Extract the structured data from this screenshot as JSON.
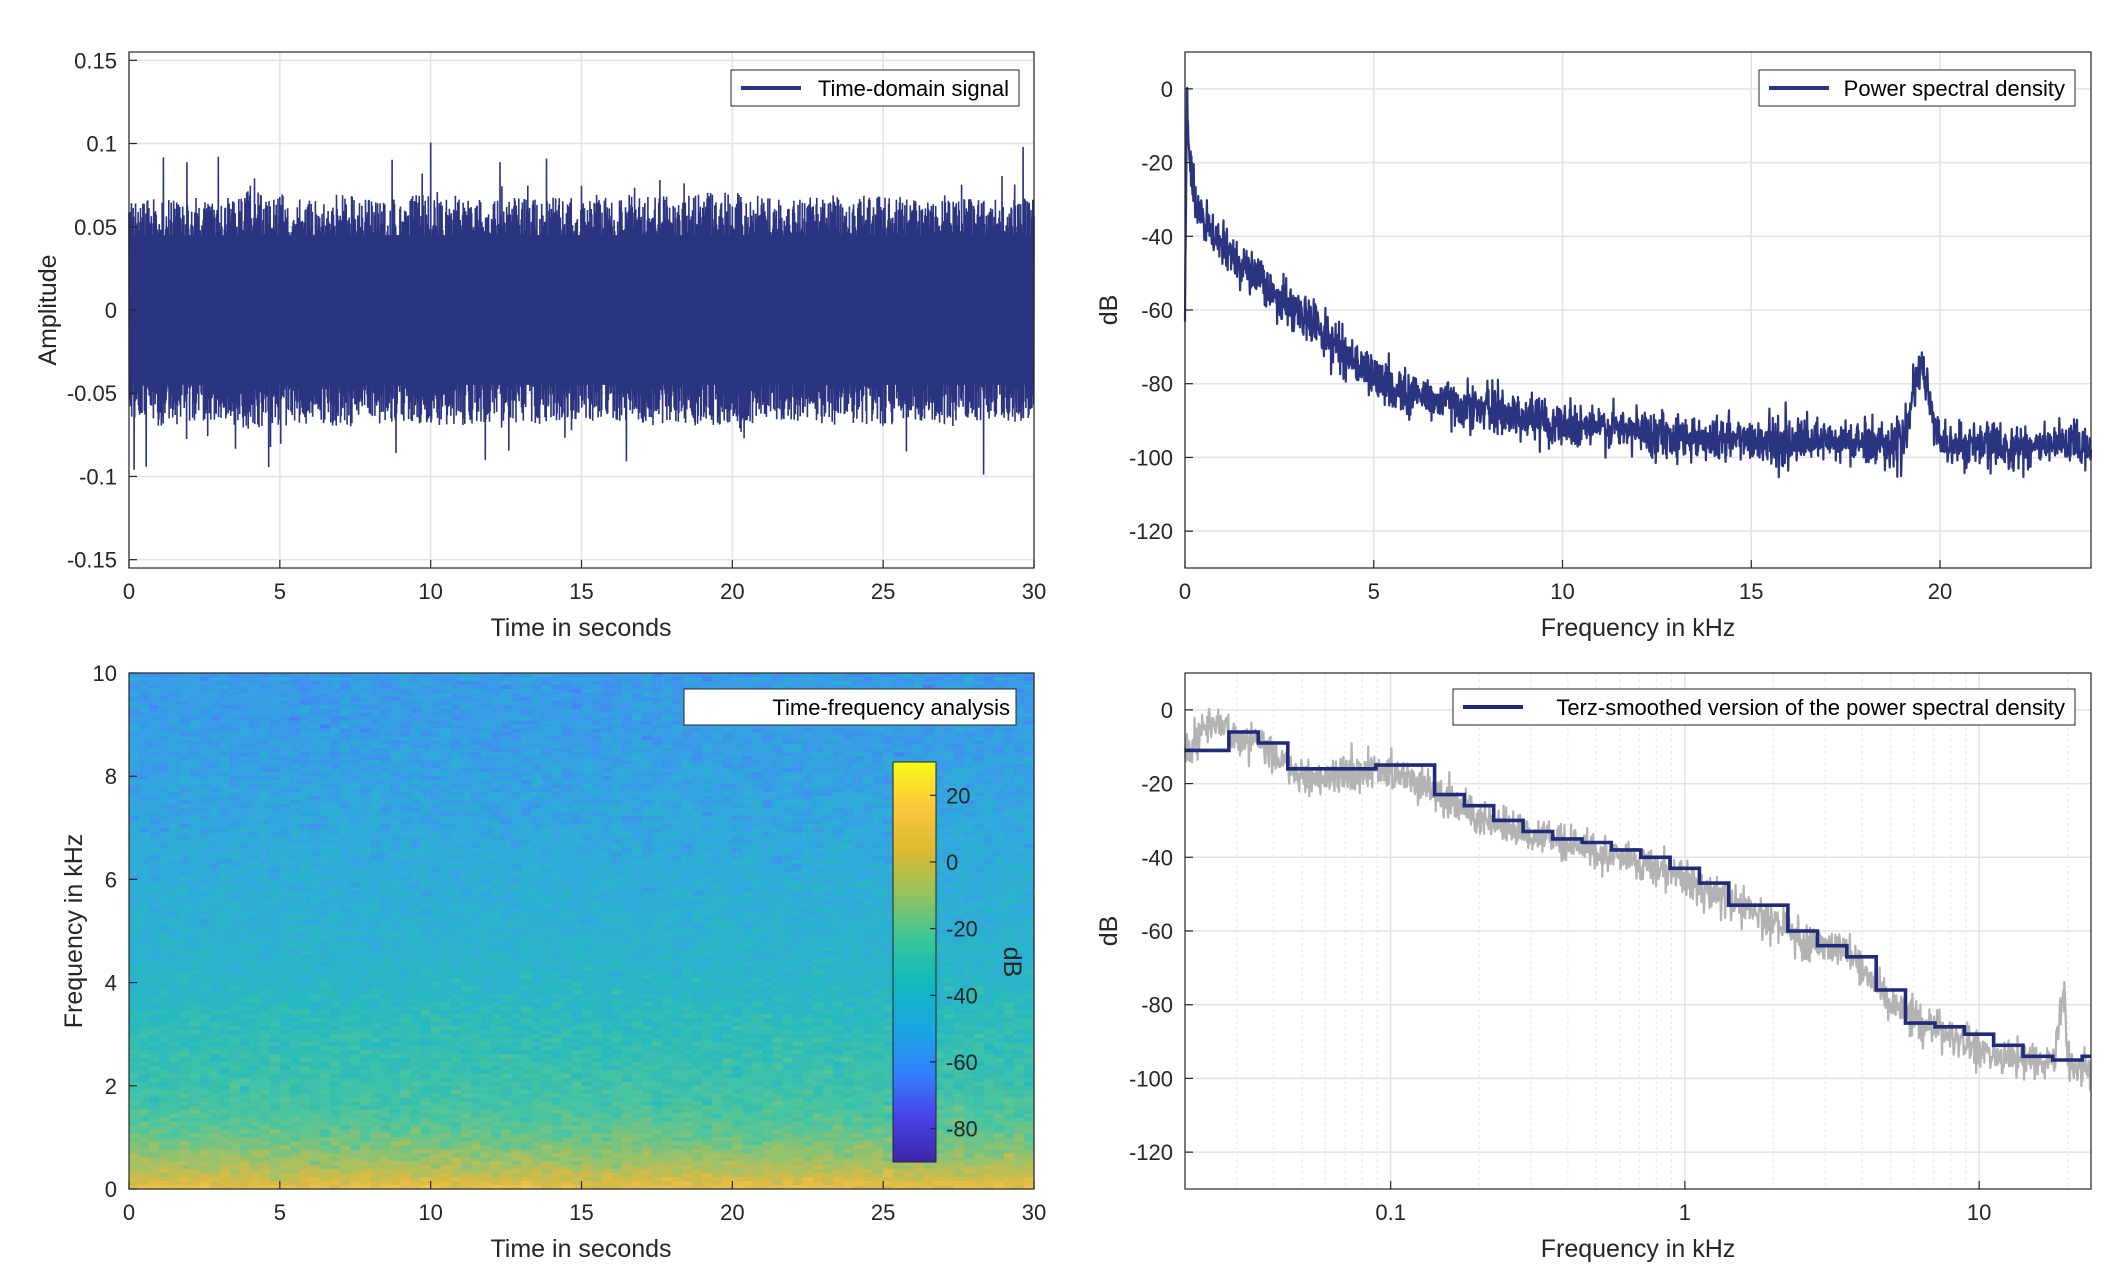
{
  "colors": {
    "signal": "#2a3480",
    "smoothed": "#1f2a78",
    "raw_psd_gray": "#b3b3b3",
    "grid": "#e3e3e3",
    "axis": "#262626",
    "colormap": [
      "#3e26a8",
      "#4742e8",
      "#3082fd",
      "#1aa6e2",
      "#0fb9c0",
      "#37c69a",
      "#92c35e",
      "#dbba31",
      "#fcc73b",
      "#f9fb15"
    ]
  },
  "chart_data": [
    {
      "id": "time-domain",
      "type": "line",
      "legend": "Time-domain signal",
      "legend_position": "top-right",
      "xlabel": "Time in seconds",
      "ylabel": "Amplitude",
      "xlim": [
        0,
        30
      ],
      "ylim": [
        -0.155,
        0.155
      ],
      "xticks": [
        0,
        5,
        10,
        15,
        20,
        25,
        30
      ],
      "xticklabels": [
        "0",
        "5",
        "10",
        "15",
        "20",
        "25",
        "30"
      ],
      "yticks": [
        -0.15,
        -0.1,
        -0.05,
        0,
        0.05,
        0.1,
        0.15
      ],
      "yticklabels": [
        "-0.15",
        "-0.1",
        "-0.05",
        "0",
        "0.05",
        "0.1",
        "0.15"
      ],
      "grid": true,
      "series": [
        {
          "envelope_upper": [
            0.065,
            0.07,
            0.068,
            0.066,
            0.072,
            0.07,
            0.068,
            0.07,
            0.066,
            0.068,
            0.072,
            0.07,
            0.067,
            0.068,
            0.07,
            0.066,
            0.068,
            0.07,
            0.069,
            0.07,
            0.072,
            0.068,
            0.066,
            0.07,
            0.068,
            0.07,
            0.067,
            0.069,
            0.068,
            0.066,
            0.07
          ],
          "envelope_lower": [
            -0.065,
            -0.07,
            -0.068,
            -0.066,
            -0.072,
            -0.07,
            -0.068,
            -0.07,
            -0.066,
            -0.068,
            -0.072,
            -0.07,
            -0.067,
            -0.068,
            -0.07,
            -0.066,
            -0.068,
            -0.07,
            -0.069,
            -0.07,
            -0.072,
            -0.068,
            -0.066,
            -0.07,
            -0.068,
            -0.07,
            -0.067,
            -0.069,
            -0.068,
            -0.066,
            -0.07
          ],
          "peak_max": 0.13,
          "peak_min": -0.125
        }
      ]
    },
    {
      "id": "psd",
      "type": "line",
      "legend": "Power spectral density",
      "legend_position": "top-right",
      "xlabel": "Frequency in kHz",
      "ylabel": "dB",
      "xlim": [
        0,
        24
      ],
      "ylim": [
        -130,
        10
      ],
      "xticks": [
        0,
        5,
        10,
        15,
        20
      ],
      "xticklabels": [
        "0",
        "5",
        "10",
        "15",
        "20"
      ],
      "yticks": [
        0,
        -20,
        -40,
        -60,
        -80,
        -100,
        -120
      ],
      "yticklabels": [
        "0",
        "-20",
        "-40",
        "-60",
        "-80",
        "-100",
        "-120"
      ],
      "grid": true,
      "series": [
        {
          "x": [
            0,
            0.05,
            0.1,
            0.2,
            0.4,
            0.7,
            1,
            1.5,
            2,
            2.5,
            3,
            3.5,
            4,
            4.5,
            5,
            5.5,
            6,
            7,
            8,
            9,
            10,
            11,
            12,
            13,
            14,
            15,
            16,
            17,
            18,
            19,
            19.5,
            20,
            21,
            22,
            23,
            24
          ],
          "y": [
            -60,
            0,
            -15,
            -28,
            -35,
            -39,
            -43,
            -47,
            -52,
            -57,
            -61,
            -64,
            -70,
            -74,
            -78,
            -81,
            -83,
            -85,
            -87,
            -89,
            -91,
            -92,
            -93,
            -94,
            -95,
            -95,
            -96,
            -96,
            -96,
            -96,
            -75,
            -96,
            -97,
            -97,
            -97,
            -97
          ],
          "band_halfwidth_db": 3
        }
      ]
    },
    {
      "id": "spectrogram",
      "type": "heatmap",
      "legend": "Time-frequency analysis",
      "legend_position": "top-right",
      "xlabel": "Time in seconds",
      "ylabel": "Frequency in kHz",
      "xlim": [
        0,
        30
      ],
      "ylim": [
        0,
        10
      ],
      "xticks": [
        0,
        5,
        10,
        15,
        20,
        25,
        30
      ],
      "xticklabels": [
        "0",
        "5",
        "10",
        "15",
        "20",
        "25",
        "30"
      ],
      "yticks": [
        0,
        2,
        4,
        6,
        8,
        10
      ],
      "yticklabels": [
        "0",
        "2",
        "4",
        "6",
        "8",
        "10"
      ],
      "colorbar": {
        "label": "dB",
        "range": [
          -90,
          30
        ],
        "ticks": [
          20,
          0,
          -20,
          -40,
          -60,
          -80
        ],
        "ticklabels": [
          "20",
          "0",
          "-20",
          "-40",
          "-60",
          "-80"
        ]
      },
      "level_profile": {
        "freq_khz": [
          0,
          0.2,
          0.5,
          1,
          1.5,
          2,
          3,
          4,
          5,
          6,
          7,
          8,
          9,
          10
        ],
        "db": [
          10,
          2,
          -8,
          -18,
          -24,
          -28,
          -33,
          -40,
          -44,
          -47,
          -50,
          -53,
          -55,
          -56
        ]
      }
    },
    {
      "id": "terz-psd",
      "type": "line",
      "legend": "Terz-smoothed version of the power spectral density",
      "legend_position": "top-right",
      "xlabel": "Frequency in kHz",
      "ylabel": "dB",
      "xscale": "log",
      "xlim": [
        0.02,
        24
      ],
      "ylim": [
        -130,
        10
      ],
      "xticks": [
        0.1,
        1,
        10
      ],
      "xticklabels": [
        "0.1",
        "1",
        "10"
      ],
      "yticks": [
        0,
        -20,
        -40,
        -60,
        -80,
        -100,
        -120
      ],
      "yticklabels": [
        "0",
        "-20",
        "-40",
        "-60",
        "-80",
        "-100",
        "-120"
      ],
      "grid": true,
      "series": [
        {
          "role": "raw",
          "x": [
            0.02,
            0.025,
            0.03,
            0.035,
            0.04,
            0.05,
            0.06,
            0.07,
            0.08,
            0.1,
            0.12,
            0.14,
            0.16,
            0.2,
            0.25,
            0.3,
            0.4,
            0.5,
            0.6,
            0.8,
            1,
            1.2,
            1.5,
            2,
            2.5,
            3,
            3.5,
            4,
            4.5,
            5,
            6,
            7,
            8,
            10,
            12,
            15,
            18,
            19.5,
            20,
            21,
            24
          ],
          "y": [
            -12,
            -2,
            -8,
            -8,
            -12,
            -18,
            -18,
            -17,
            -16,
            -17,
            -20,
            -22,
            -25,
            -29,
            -32,
            -34,
            -36,
            -38,
            -40,
            -43,
            -46,
            -50,
            -53,
            -57,
            -62,
            -64,
            -66,
            -70,
            -74,
            -79,
            -83,
            -86,
            -89,
            -92,
            -94,
            -95,
            -96,
            -75,
            -96,
            -97,
            -97
          ]
        },
        {
          "role": "smoothed",
          "step_edges": [
            0.02,
            0.0282,
            0.0355,
            0.0447,
            0.0562,
            0.0708,
            0.0891,
            0.112,
            0.141,
            0.178,
            0.224,
            0.282,
            0.355,
            0.447,
            0.562,
            0.708,
            0.891,
            1.12,
            1.41,
            1.78,
            2.24,
            2.82,
            3.55,
            4.47,
            5.62,
            7.08,
            8.91,
            11.2,
            14.1,
            17.8,
            22.4,
            24
          ],
          "step_values": [
            -11,
            -6,
            -9,
            -16,
            -16,
            -16,
            -15,
            -15,
            -23,
            -26,
            -30,
            -33,
            -35,
            -36,
            -38,
            -40,
            -43,
            -47,
            -53,
            -53,
            -60,
            -64,
            -67,
            -76,
            -85,
            -86,
            -88,
            -91,
            -94,
            -95,
            -94
          ]
        }
      ]
    }
  ]
}
